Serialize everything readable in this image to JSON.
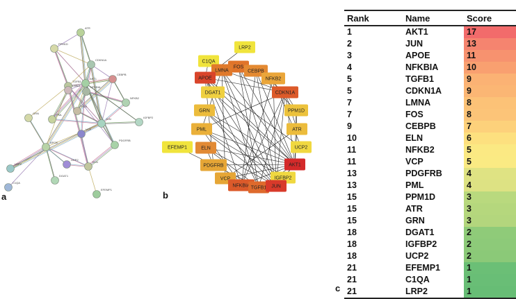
{
  "panel_labels": {
    "a": "a",
    "b": "b",
    "c": "c"
  },
  "table": {
    "headers": {
      "rank": "Rank",
      "name": "Name",
      "score": "Score"
    },
    "rows": [
      {
        "rank": "1",
        "name": "AKT1",
        "score": "17",
        "color": "#f26b6b"
      },
      {
        "rank": "2",
        "name": "JUN",
        "score": "13",
        "color": "#f5846f"
      },
      {
        "rank": "3",
        "name": "APOE",
        "score": "11",
        "color": "#f7926f"
      },
      {
        "rank": "4",
        "name": "NFKBIA",
        "score": "10",
        "color": "#f9a070"
      },
      {
        "rank": "5",
        "name": "TGFB1",
        "score": "9",
        "color": "#fbb274"
      },
      {
        "rank": "5",
        "name": "CDKN1A",
        "score": "9",
        "color": "#fbb674"
      },
      {
        "rank": "7",
        "name": "LMNA",
        "score": "8",
        "color": "#fcc277"
      },
      {
        "rank": "7",
        "name": "FOS",
        "score": "8",
        "color": "#fcc478"
      },
      {
        "rank": "9",
        "name": "CEBPB",
        "score": "7",
        "color": "#fdd17b"
      },
      {
        "rank": "10",
        "name": "ELN",
        "score": "6",
        "color": "#fde07f"
      },
      {
        "rank": "11",
        "name": "NFKB2",
        "score": "5",
        "color": "#fbe983"
      },
      {
        "rank": "11",
        "name": "VCP",
        "score": "5",
        "color": "#faea83"
      },
      {
        "rank": "13",
        "name": "PDGFRB",
        "score": "4",
        "color": "#dfe383"
      },
      {
        "rank": "13",
        "name": "PML",
        "score": "4",
        "color": "#dde283"
      },
      {
        "rank": "15",
        "name": "PPM1D",
        "score": "3",
        "color": "#b9d97e"
      },
      {
        "rank": "15",
        "name": "ATR",
        "score": "3",
        "color": "#b5d77d"
      },
      {
        "rank": "15",
        "name": "GRN",
        "score": "3",
        "color": "#b3d67d"
      },
      {
        "rank": "18",
        "name": "DGAT1",
        "score": "2",
        "color": "#8fcb79"
      },
      {
        "rank": "18",
        "name": "IGFBP2",
        "score": "2",
        "color": "#8dca79"
      },
      {
        "rank": "18",
        "name": "UCP2",
        "score": "2",
        "color": "#8bc978"
      },
      {
        "rank": "21",
        "name": "EFEMP1",
        "score": "1",
        "color": "#6bbf76"
      },
      {
        "rank": "21",
        "name": "C1QA",
        "score": "1",
        "color": "#69be76"
      },
      {
        "rank": "21",
        "name": "LRP2",
        "score": "1",
        "color": "#67bd75"
      }
    ]
  },
  "network_b": {
    "nodes": [
      {
        "id": "LRP2",
        "color": "#f0e43c"
      },
      {
        "id": "C1QA",
        "color": "#f0e43c"
      },
      {
        "id": "FOS",
        "color": "#e0742a"
      },
      {
        "id": "LMNA",
        "color": "#e07a2c"
      },
      {
        "id": "CEBPB",
        "color": "#e48a32"
      },
      {
        "id": "APOE",
        "color": "#d9452b"
      },
      {
        "id": "NFKB2",
        "color": "#eaa63a"
      },
      {
        "id": "CDKN1A",
        "color": "#dc5a2a"
      },
      {
        "id": "DGAT1",
        "color": "#efd040"
      },
      {
        "id": "PPM1D",
        "color": "#ecc23c"
      },
      {
        "id": "GRN",
        "color": "#ecbc3c"
      },
      {
        "id": "ATR",
        "color": "#ecbc3c"
      },
      {
        "id": "PML",
        "color": "#eab03a"
      },
      {
        "id": "UCP2",
        "color": "#f0d840"
      },
      {
        "id": "EFEMP1",
        "color": "#f0e43c"
      },
      {
        "id": "ELN",
        "color": "#e28a34"
      },
      {
        "id": "AKT1",
        "color": "#d42a2a"
      },
      {
        "id": "PDGFRB",
        "color": "#e6a636"
      },
      {
        "id": "IGFBP2",
        "color": "#f0d840"
      },
      {
        "id": "VCP",
        "color": "#e6a636"
      },
      {
        "id": "NFKBIA",
        "color": "#dc5a2a"
      },
      {
        "id": "TGFB1",
        "color": "#de6a2c"
      },
      {
        "id": "JUN",
        "color": "#d83a2a"
      }
    ]
  },
  "network_a": {
    "labels": [
      "ATR",
      "PPM1D",
      "CDKN1A",
      "CEBPB",
      "NFKB2",
      "AKT1",
      "TGFB1",
      "LMNA",
      "GRN",
      "PML",
      "APOE",
      "JUN",
      "IGFBP2",
      "PDGFRB",
      "LRP2",
      "C1QA",
      "DGAT1",
      "UCP2",
      "ELN",
      "EFEMP1",
      "VCP",
      "FOS",
      "NFKBIA"
    ]
  }
}
